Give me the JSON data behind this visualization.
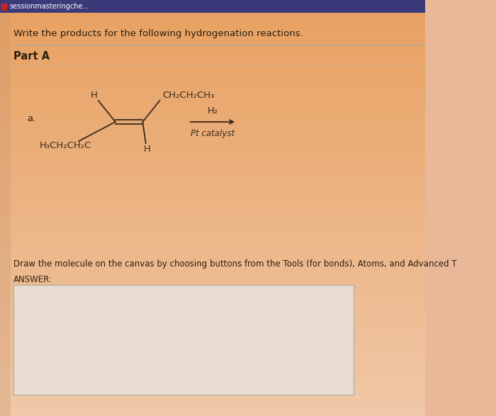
{
  "bg_color": "#e8b898",
  "bg_upper_color": "#e0a070",
  "header_bar_color": "#3a3a7a",
  "header_text": "sessionmasteringche...",
  "title_text": "Write the products for the following hydrogenation reactions.",
  "part_label": "Part A",
  "item_label": "a.",
  "reagent_top": "H₂",
  "reagent_bottom": "Pt catalyst",
  "instruction_text": "Draw the molecule on the canvas by choosing buttons from the Tools (for bonds), Atoms, and Advanced T",
  "answer_label": "ANSWER:",
  "answer_box_color": "#e8ddd0",
  "answer_box_edge": "#aaaaaa",
  "mol_color": "#3a2a1a",
  "text_color": "#2a2010"
}
